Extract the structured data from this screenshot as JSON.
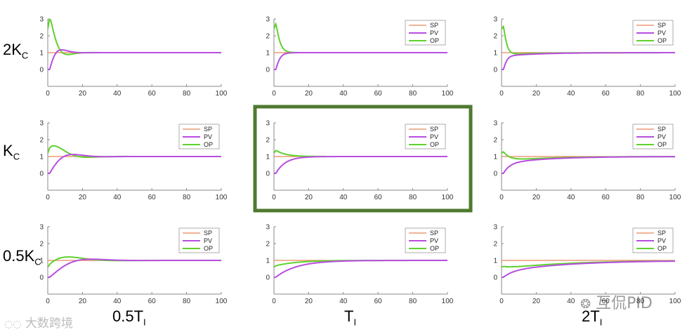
{
  "row_labels": [
    {
      "main": "2K",
      "sub": "C"
    },
    {
      "main": "K",
      "sub": "C"
    },
    {
      "main": "0.5K",
      "sub": "C"
    }
  ],
  "col_labels": [
    {
      "main": "0.5T",
      "sub": "I"
    },
    {
      "main": "T",
      "sub": "I"
    },
    {
      "main": "2T",
      "sub": "I"
    }
  ],
  "watermarks": {
    "left": "大数跨境",
    "right": "互侃PID"
  },
  "colors": {
    "SP": "#e8875a",
    "PV": "#b84de0",
    "OP": "#5fd12e",
    "highlight": "#4e7a2f",
    "axis": "#888888"
  },
  "chart_data": [
    {
      "type": "line",
      "row": 0,
      "col": 0,
      "kc_factor": 2,
      "ti_factor": 0.5,
      "xlim": [
        0,
        100
      ],
      "ylim": [
        -1,
        3
      ],
      "xticks": [
        0,
        20,
        40,
        60,
        80,
        100
      ],
      "yticks": [
        0,
        1,
        2,
        3
      ],
      "legend": null,
      "series": [
        {
          "name": "SP",
          "value": 1
        },
        {
          "name": "PV"
        },
        {
          "name": "OP"
        }
      ]
    },
    {
      "type": "line",
      "row": 0,
      "col": 1,
      "kc_factor": 2,
      "ti_factor": 1,
      "xlim": [
        0,
        100
      ],
      "ylim": [
        -1,
        3
      ],
      "xticks": [
        0,
        20,
        40,
        60,
        80,
        100
      ],
      "yticks": [
        0,
        1,
        2,
        3
      ],
      "legend": [
        "SP",
        "PV",
        "OP"
      ],
      "series": [
        {
          "name": "SP",
          "value": 1
        },
        {
          "name": "PV"
        },
        {
          "name": "OP"
        }
      ]
    },
    {
      "type": "line",
      "row": 0,
      "col": 2,
      "kc_factor": 2,
      "ti_factor": 2,
      "xlim": [
        0,
        100
      ],
      "ylim": [
        -1,
        3
      ],
      "xticks": [
        0,
        20,
        40,
        60,
        80,
        100
      ],
      "yticks": [
        0,
        1,
        2,
        3
      ],
      "legend": [
        "SP",
        "PV",
        "OP"
      ],
      "series": [
        {
          "name": "SP",
          "value": 1
        },
        {
          "name": "PV"
        },
        {
          "name": "OP"
        }
      ]
    },
    {
      "type": "line",
      "row": 1,
      "col": 0,
      "kc_factor": 1,
      "ti_factor": 0.5,
      "xlim": [
        0,
        100
      ],
      "ylim": [
        -1,
        3
      ],
      "xticks": [
        0,
        20,
        40,
        60,
        80,
        100
      ],
      "yticks": [
        0,
        1,
        2,
        3
      ],
      "legend": [
        "SP",
        "PV",
        "OP"
      ],
      "series": [
        {
          "name": "SP",
          "value": 1
        },
        {
          "name": "PV"
        },
        {
          "name": "OP"
        }
      ]
    },
    {
      "type": "line",
      "row": 1,
      "col": 1,
      "kc_factor": 1,
      "ti_factor": 1,
      "xlim": [
        0,
        100
      ],
      "ylim": [
        -1,
        3
      ],
      "xticks": [
        0,
        20,
        40,
        60,
        80,
        100
      ],
      "yticks": [
        0,
        1,
        2,
        3
      ],
      "legend": [
        "SP",
        "PV",
        "OP"
      ],
      "highlighted": true,
      "series": [
        {
          "name": "SP",
          "value": 1
        },
        {
          "name": "PV"
        },
        {
          "name": "OP"
        }
      ]
    },
    {
      "type": "line",
      "row": 1,
      "col": 2,
      "kc_factor": 1,
      "ti_factor": 2,
      "xlim": [
        0,
        100
      ],
      "ylim": [
        -1,
        3
      ],
      "xticks": [
        0,
        20,
        40,
        60,
        80,
        100
      ],
      "yticks": [
        0,
        1,
        2,
        3
      ],
      "legend": [
        "SP",
        "PV",
        "OP"
      ],
      "series": [
        {
          "name": "SP",
          "value": 1
        },
        {
          "name": "PV"
        },
        {
          "name": "OP"
        }
      ]
    },
    {
      "type": "line",
      "row": 2,
      "col": 0,
      "kc_factor": 0.5,
      "ti_factor": 0.5,
      "xlim": [
        0,
        100
      ],
      "ylim": [
        -1,
        3
      ],
      "xticks": [
        0,
        20,
        40,
        60,
        80,
        100
      ],
      "yticks": [
        0,
        1,
        2,
        3
      ],
      "legend": [
        "SP",
        "PV",
        "OP"
      ],
      "series": [
        {
          "name": "SP",
          "value": 1
        },
        {
          "name": "PV"
        },
        {
          "name": "OP"
        }
      ]
    },
    {
      "type": "line",
      "row": 2,
      "col": 1,
      "kc_factor": 0.5,
      "ti_factor": 1,
      "xlim": [
        0,
        100
      ],
      "ylim": [
        -1,
        3
      ],
      "xticks": [
        0,
        20,
        40,
        60,
        80,
        100
      ],
      "yticks": [
        0,
        1,
        2,
        3
      ],
      "legend": [
        "SP",
        "PV",
        "OP"
      ],
      "series": [
        {
          "name": "SP",
          "value": 1
        },
        {
          "name": "PV"
        },
        {
          "name": "OP"
        }
      ]
    },
    {
      "type": "line",
      "row": 2,
      "col": 2,
      "kc_factor": 0.5,
      "ti_factor": 2,
      "xlim": [
        0,
        100
      ],
      "ylim": [
        -1,
        3
      ],
      "xticks": [
        0,
        20,
        40,
        60,
        80,
        100
      ],
      "yticks": [
        0,
        1,
        2,
        3
      ],
      "legend": [
        "SP",
        "PV",
        "OP"
      ],
      "series": [
        {
          "name": "SP",
          "value": 1
        },
        {
          "name": "PV"
        },
        {
          "name": "OP"
        }
      ]
    }
  ]
}
